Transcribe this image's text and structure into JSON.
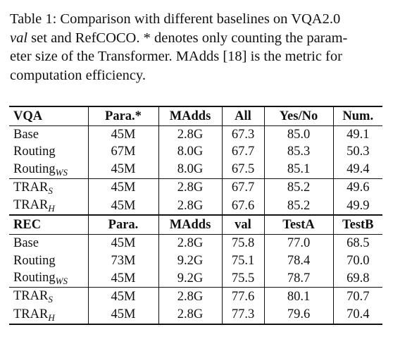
{
  "caption": {
    "prefix": "Table 1: Comparison with different baselines on VQA2.0",
    "italic_word": "val",
    "line2_rest": "set and RefCOCO. * denotes only counting the param-",
    "line3": "eter size of the Transformer. MAdds [18] is the metric for",
    "line4": "computation efficiency."
  },
  "vqa": {
    "headers": [
      "VQA",
      "Para.*",
      "MAdds",
      "All",
      "Yes/No",
      "Num."
    ],
    "rows": [
      {
        "name": "Base",
        "sub": "",
        "cells": [
          "45M",
          "2.8G",
          "67.3",
          "85.0",
          "49.1"
        ]
      },
      {
        "name": "Routing",
        "sub": "",
        "cells": [
          "67M",
          "8.0G",
          "67.7",
          "85.3",
          "50.3"
        ]
      },
      {
        "name": "Routing",
        "sub": "WS",
        "cells": [
          "45M",
          "8.0G",
          "67.5",
          "85.1",
          "49.4"
        ]
      },
      {
        "name": "TRAR",
        "sub": "S",
        "cells": [
          "45M",
          "2.8G",
          "67.7",
          "85.2",
          "49.6"
        ]
      },
      {
        "name": "TRAR",
        "sub": "H",
        "cells": [
          "45M",
          "2.8G",
          "67.6",
          "85.2",
          "49.9"
        ]
      }
    ]
  },
  "rec": {
    "headers": [
      "REC",
      "Para.",
      "MAdds",
      "val",
      "TestA",
      "TestB"
    ],
    "rows": [
      {
        "name": "Base",
        "sub": "",
        "cells": [
          "45M",
          "2.8G",
          "75.8",
          "77.0",
          "68.5"
        ]
      },
      {
        "name": "Routing",
        "sub": "",
        "cells": [
          "73M",
          "9.2G",
          "75.1",
          "78.4",
          "70.0"
        ]
      },
      {
        "name": "Routing",
        "sub": "WS",
        "cells": [
          "45M",
          "9.2G",
          "75.5",
          "78.7",
          "69.8"
        ]
      },
      {
        "name": "TRAR",
        "sub": "S",
        "cells": [
          "45M",
          "2.8G",
          "77.6",
          "80.1",
          "70.7"
        ]
      },
      {
        "name": "TRAR",
        "sub": "H",
        "cells": [
          "45M",
          "2.8G",
          "77.3",
          "79.6",
          "70.4"
        ]
      }
    ]
  }
}
